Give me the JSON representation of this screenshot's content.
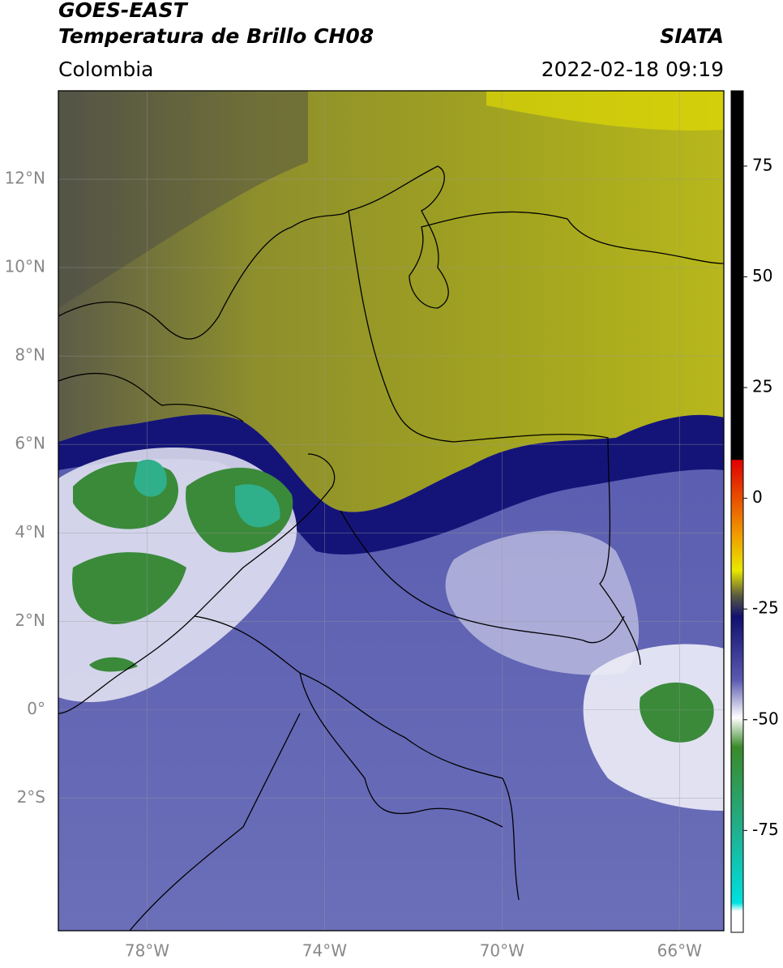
{
  "header": {
    "title_line1": "GOES-EAST",
    "title_line2": "Temperatura de Brillo CH08",
    "source": "SIATA",
    "region": "Colombia",
    "timestamp": "2022-02-18 09:19"
  },
  "map": {
    "lonlim": [
      -80,
      -65
    ],
    "latlim": [
      -5,
      14
    ],
    "lon_ticks": [
      {
        "value": -78,
        "label": "78°W"
      },
      {
        "value": -74,
        "label": "74°W"
      },
      {
        "value": -70,
        "label": "70°W"
      },
      {
        "value": -66,
        "label": "66°W"
      }
    ],
    "lat_ticks": [
      {
        "value": 12,
        "label": "12°N"
      },
      {
        "value": 10,
        "label": "10°N"
      },
      {
        "value": 8,
        "label": "8°N"
      },
      {
        "value": 6,
        "label": "6°N"
      },
      {
        "value": 4,
        "label": "4°N"
      },
      {
        "value": 2,
        "label": "2°N"
      },
      {
        "value": 0,
        "label": "0°"
      },
      {
        "value": -2,
        "label": "2°S"
      }
    ]
  },
  "colorbar": {
    "lim": [
      -98,
      92
    ],
    "ticks": [
      75,
      50,
      25,
      0,
      -25,
      -50,
      -75
    ]
  }
}
